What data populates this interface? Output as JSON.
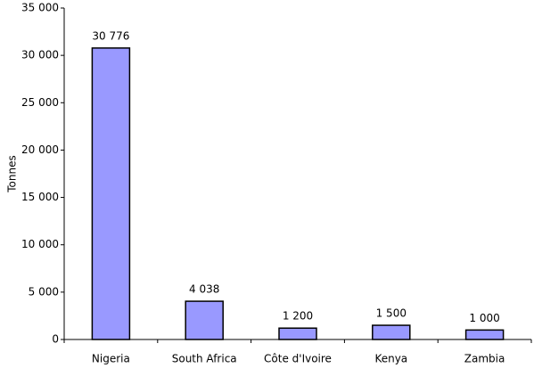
{
  "chart_data": {
    "type": "bar",
    "y_label": "Tonnes",
    "categories": [
      "Nigeria",
      "South Africa",
      "Côte d'Ivoire",
      "Kenya",
      "Zambia"
    ],
    "values": [
      30776,
      4038,
      1200,
      1500,
      1000
    ],
    "value_labels": [
      "30 776",
      "4 038",
      "1 200",
      "1 500",
      "1 000"
    ],
    "color": "#9999ff",
    "ylim": [
      0,
      35000
    ],
    "yticks": [
      0,
      {
        "value": 5000,
        "label": "5 000"
      },
      {
        "value": 10000,
        "label": "10 000"
      },
      {
        "value": 15000,
        "label": "15 000"
      },
      {
        "value": 20000,
        "label": "20 000"
      },
      {
        "value": 25000,
        "label": "25 000"
      },
      {
        "value": 30000,
        "label": "30 000"
      },
      {
        "value": 35000,
        "label": "35 000"
      }
    ],
    "grid": false
  }
}
